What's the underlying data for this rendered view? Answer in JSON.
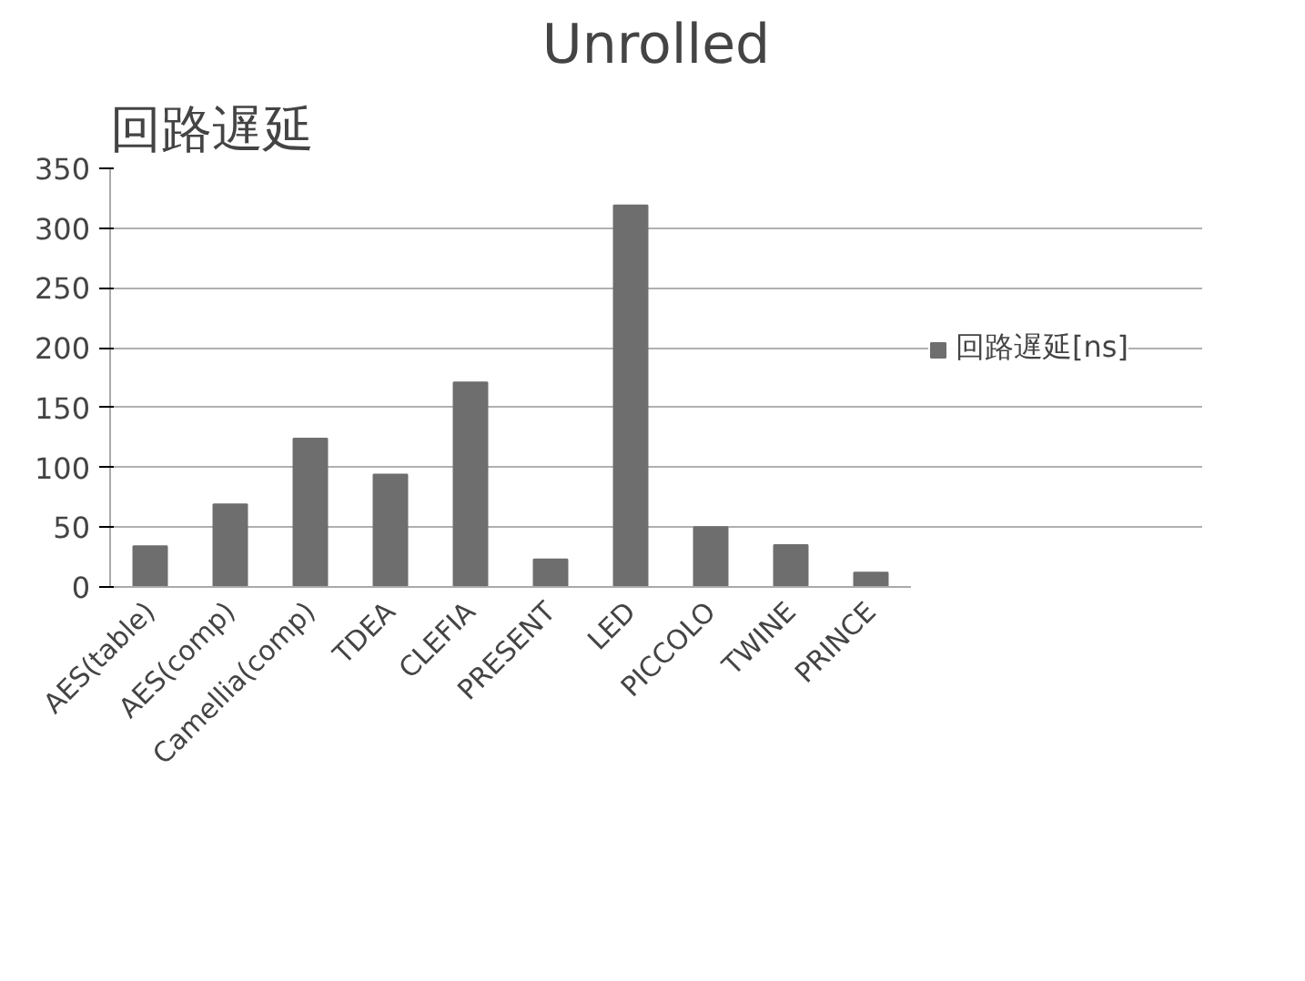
{
  "chart_data": {
    "type": "bar",
    "subtitle": "Unrolled",
    "title": "回路遅延",
    "categories": [
      "AES(table)",
      "AES(comp)",
      "Camellia(comp)",
      "TDEA",
      "CLEFIA",
      "PRESENT",
      "LED",
      "PICCOLO",
      "TWINE",
      "PRINCE"
    ],
    "series": [
      {
        "name": "回路遅延[ns]",
        "color": "#6e6e6e",
        "values": [
          34,
          69,
          124,
          94,
          171,
          23,
          319,
          50,
          35,
          12
        ]
      }
    ],
    "ylim": [
      0,
      350
    ],
    "yticks": [
      0,
      50,
      100,
      150,
      200,
      250,
      300,
      350
    ],
    "grid": "y",
    "legend": "right"
  }
}
